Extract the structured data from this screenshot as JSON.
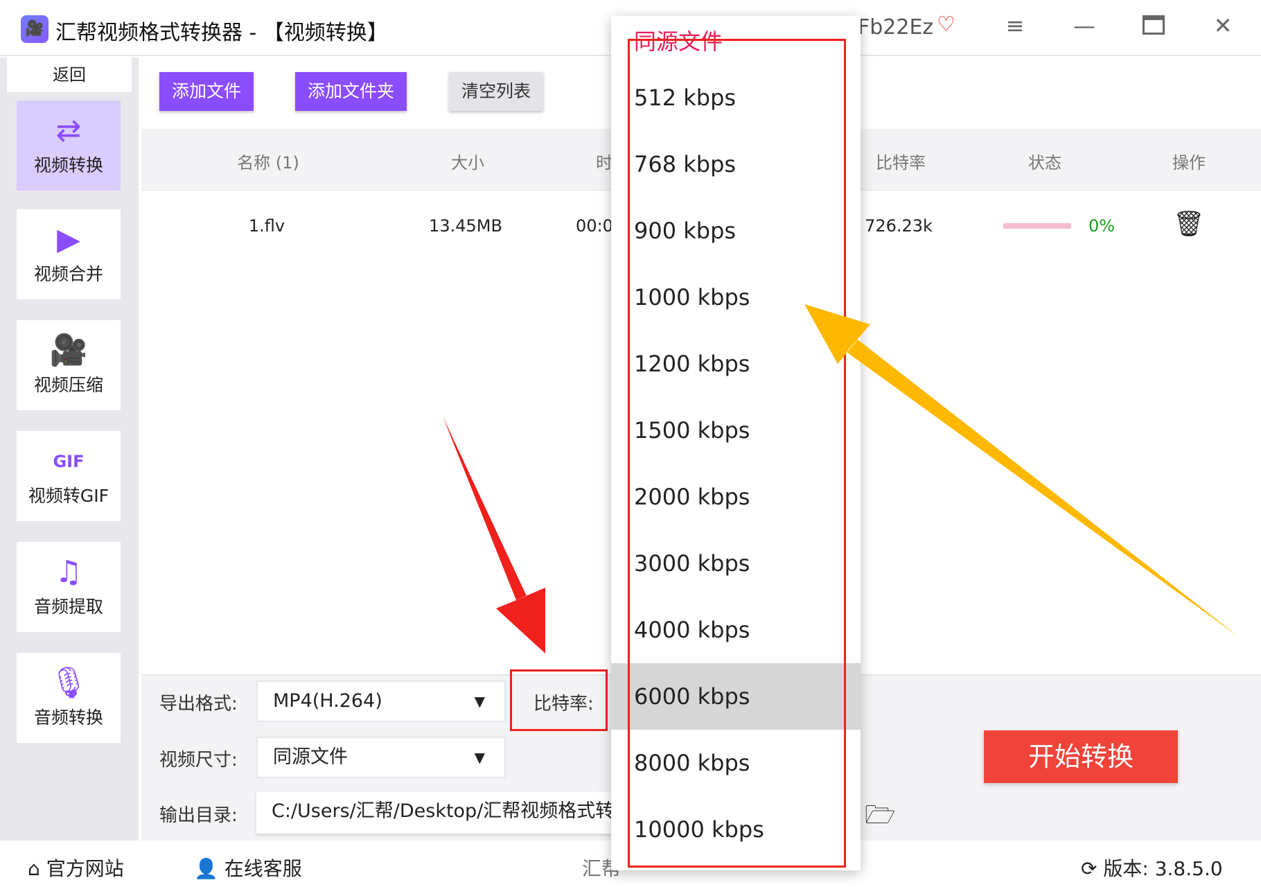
{
  "window": {
    "title": "汇帮视频格式转换器  - 【视频转换】",
    "user": "Fb22Ez",
    "controls": [
      "menu",
      "minimize",
      "maximize",
      "close"
    ]
  },
  "sidebar": {
    "back": "返回",
    "items": [
      {
        "label": "视频转换",
        "icon": "video-convert-icon",
        "active": true
      },
      {
        "label": "视频合并",
        "icon": "video-merge-icon"
      },
      {
        "label": "视频压缩",
        "icon": "video-compress-icon"
      },
      {
        "label": "视频转GIF",
        "icon": "gif-icon"
      },
      {
        "label": "音频提取",
        "icon": "music-note-icon"
      },
      {
        "label": "音频转换",
        "icon": "microphone-icon"
      }
    ]
  },
  "toolbar": {
    "add_file": "添加文件",
    "add_folder": "添加文件夹",
    "clear_list": "清空列表"
  },
  "table": {
    "headers": [
      "名称 (1)",
      "大小",
      "时",
      "比特率",
      "状态",
      "操作"
    ],
    "rows": [
      {
        "name": "1.flv",
        "size": "13.45MB",
        "duration": "00:0",
        "bitrate": "726.23k",
        "progress": "0%",
        "progress_value": 0
      }
    ]
  },
  "settings": {
    "format_label": "导出格式:",
    "format_value": "MP4(H.264)",
    "bitrate_label": "比特率:",
    "size_label": "视频尺寸:",
    "size_value": "同源文件",
    "output_label": "输出目录:",
    "output_value": "C:/Users/汇帮/Desktop/汇帮视频格式转"
  },
  "start_button": "开始转换",
  "bitrate_dropdown": {
    "options": [
      "同源文件",
      "512 kbps",
      "768 kbps",
      "900 kbps",
      "1000 kbps",
      "1200 kbps",
      "1500 kbps",
      "2000 kbps",
      "3000 kbps",
      "4000 kbps",
      "6000 kbps",
      "8000 kbps",
      "10000 kbps"
    ],
    "hovered": "6000 kbps",
    "selected": "同源文件"
  },
  "footer": {
    "website": "官方网站",
    "support": "在线客服",
    "center": "汇帮",
    "version": "版本: 3.8.5.0"
  },
  "colors": {
    "accent": "#8a4dff",
    "start": "#f0433a",
    "annotation_red": "#f0201c",
    "annotation_yellow": "#ffb800",
    "progress_text": "#1a9e1a"
  }
}
